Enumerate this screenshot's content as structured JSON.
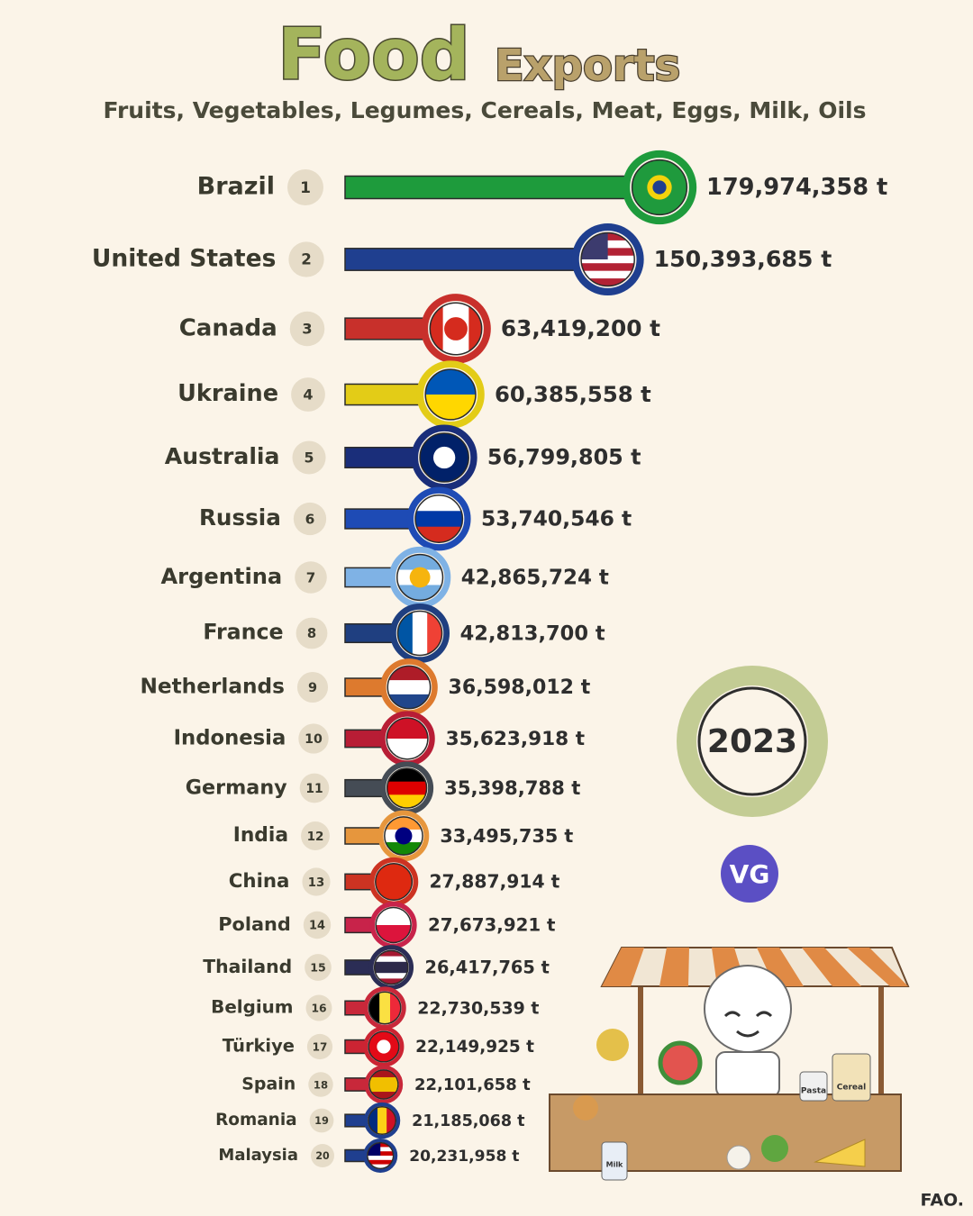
{
  "chart_data": {
    "type": "bar",
    "title": "Food",
    "title_second": "Exports",
    "subtitle": "Fruits, Vegetables, Legumes, Cereals, Meat, Eggs, Milk, Oils",
    "year": "2023",
    "categories": [
      "Brazil",
      "United States",
      "Canada",
      "Ukraine",
      "Australia",
      "Russia",
      "Argentina",
      "France",
      "Netherlands",
      "Indonesia",
      "Germany",
      "India",
      "China",
      "Poland",
      "Thailand",
      "Belgium",
      "Türkiye",
      "Spain",
      "Romania",
      "Malaysia"
    ],
    "ranks": [
      1,
      2,
      3,
      4,
      5,
      6,
      7,
      8,
      9,
      10,
      11,
      12,
      13,
      14,
      15,
      16,
      17,
      18,
      19,
      20
    ],
    "values": [
      179974358,
      150393685,
      63419200,
      60385558,
      56799805,
      53740546,
      42865724,
      42813700,
      36598012,
      35623918,
      35398788,
      33495735,
      27887914,
      27673921,
      26417765,
      22730539,
      22149925,
      22101658,
      21185068,
      20231958
    ],
    "value_labels": [
      "179,974,358 t",
      "150,393,685 t",
      "63,419,200 t",
      "60,385,558 t",
      "56,799,805 t",
      "53,740,546 t",
      "42,865,724 t",
      "42,813,700 t",
      "36,598,012 t",
      "35,623,918 t",
      "35,398,788 t",
      "33,495,735 t",
      "27,887,914 t",
      "27,673,921 t",
      "26,417,765 t",
      "22,730,539 t",
      "22,149,925 t",
      "22,101,658 t",
      "21,185,068 t",
      "20,231,958 t"
    ],
    "colors": [
      "#1e9b3c",
      "#1f3f8f",
      "#c8302b",
      "#e3cc17",
      "#1a2e7a",
      "#1e4bb5",
      "#7fb2e5",
      "#1f3f80",
      "#dd7a2e",
      "#b81d35",
      "#454c55",
      "#e6963d",
      "#cc3322",
      "#c8234a",
      "#2b2d55",
      "#c8283a",
      "#cc2433",
      "#c8283a",
      "#1f3f8f",
      "#1f3f8f"
    ],
    "logo": "VG",
    "source": "FAO.",
    "illustration_labels": [
      "Pasta",
      "Cereal",
      "Milk"
    ]
  }
}
